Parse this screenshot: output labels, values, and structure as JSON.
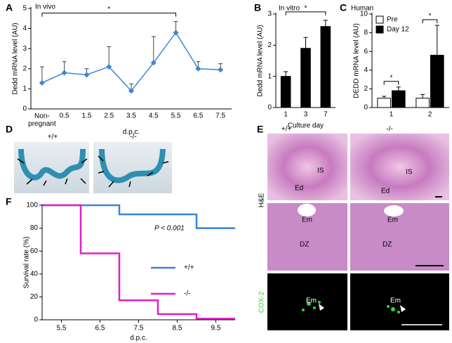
{
  "panel_labels": [
    "A",
    "B",
    "C",
    "D",
    "E",
    "F"
  ],
  "chart_data": [
    {
      "type": "line",
      "annotation": "In vivo",
      "x_label": "d.p.c.",
      "y_label": "Dedd mRNA level (AU)",
      "categories": [
        "Non-pregnant",
        "0.5",
        "1.5",
        "2.5",
        "3.5",
        "4.5",
        "5.5",
        "6.5",
        "7.5"
      ],
      "series": [
        {
          "color": "#3d86d4",
          "values": [
            1.3,
            1.8,
            1.7,
            2.1,
            0.9,
            2.3,
            3.8,
            2.0,
            1.95
          ],
          "errors": [
            0.8,
            0.55,
            0.3,
            1.0,
            0.35,
            1.3,
            0.55,
            0.35,
            0.3
          ]
        }
      ],
      "ylim": [
        0,
        5
      ],
      "yticks": [
        0,
        1,
        2,
        3,
        4,
        5
      ],
      "significance": [
        {
          "between": [
            "Non-pregnant",
            "5.5"
          ],
          "label": "*"
        }
      ]
    },
    {
      "type": "bar",
      "annotation": "In vitro",
      "x_label": "Culture day",
      "y_label": "Dedd mRNA level (AU)",
      "categories": [
        "1",
        "3",
        "7"
      ],
      "series": [
        {
          "color": "#000000",
          "values": [
            1.0,
            1.9,
            2.6
          ],
          "errors": [
            0.15,
            0.35,
            0.2
          ]
        }
      ],
      "ylim": [
        0,
        3
      ],
      "yticks": [
        0,
        1,
        2,
        3
      ],
      "significance": [
        {
          "between": [
            "1",
            "7"
          ],
          "label": "*"
        }
      ]
    },
    {
      "type": "bar",
      "annotation": "Human",
      "y_label": "DEDD mRNA level (AU)",
      "categories": [
        "1",
        "2"
      ],
      "series": [
        {
          "name": "Pre",
          "color": "#ffffff",
          "values": [
            1.0,
            1.0
          ],
          "errors": [
            0.2,
            0.4
          ]
        },
        {
          "name": "Day 12",
          "color": "#000000",
          "values": [
            1.8,
            5.6
          ],
          "errors": [
            0.4,
            3.2
          ]
        }
      ],
      "ylim": [
        0,
        10
      ],
      "yticks": [
        0,
        2,
        4,
        6,
        8,
        10
      ],
      "legend": "upper left",
      "significance": [
        {
          "category": "1",
          "label": "*"
        },
        {
          "category": "2",
          "label": "*"
        }
      ]
    },
    {
      "type": "step",
      "annotation": "P < 0.001",
      "x_label": "d.p.c.",
      "y_label": "Survival rate (%)",
      "series": [
        {
          "name": "+/+",
          "color": "#3b82d6",
          "x": [
            5,
            7,
            9,
            10
          ],
          "values": [
            100,
            92,
            80,
            80
          ]
        },
        {
          "name": "-/-",
          "color": "#e020c8",
          "x": [
            5,
            6,
            7,
            8,
            9,
            10
          ],
          "values": [
            100,
            58,
            17,
            5,
            1,
            1
          ]
        }
      ],
      "xlim": [
        5,
        10
      ],
      "xticks": [
        5.5,
        6.5,
        7.5,
        8.5,
        9.5
      ],
      "ylim": [
        0,
        100
      ],
      "yticks": [
        0,
        20,
        40,
        60,
        80,
        100
      ],
      "legend": "center right"
    }
  ],
  "images": {
    "D": {
      "genotypes": [
        "+/+",
        "-/-"
      ]
    },
    "E": {
      "genotypes": [
        "+/+",
        "-/-"
      ],
      "row_labels": [
        "H&E",
        "COX-2"
      ],
      "annotations": [
        "IS",
        "Ed",
        "Em",
        "DZ",
        "Em",
        "IS",
        "Ed",
        "Em",
        "DZ",
        "Em"
      ]
    }
  }
}
